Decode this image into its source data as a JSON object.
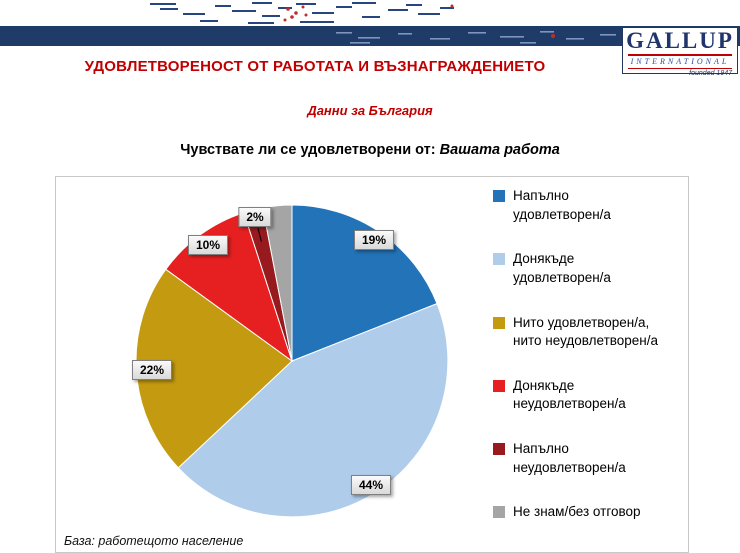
{
  "banner": {
    "logo": {
      "name": "GALLUP",
      "subname": "INTERNATIONAL",
      "tagline": "founded 1947"
    }
  },
  "header": {
    "title": "УДОВЛЕТВОРЕНОСТ ОТ РАБОТАТА И ВЪЗНАГРАЖДЕНИЕТО",
    "subtitle": "Данни за България"
  },
  "question": {
    "prefix": "Чувствате ли се удовлетворени от: ",
    "emphasis": "Вашата работа"
  },
  "footnote": "База: работещото население",
  "colors": {
    "accent_red": "#C00000",
    "banner_navy": "#1F3B67"
  },
  "chart_data": {
    "type": "pie",
    "title": "Чувствате ли се удовлетворени от: Вашата работа",
    "start_angle_deg": 0,
    "direction": "clockwise",
    "legend_position": "right",
    "unit": "%",
    "slices": [
      {
        "label": "Напълно удовлетворен/а",
        "value": 19,
        "data_label": "19%",
        "color": "#2373B8"
      },
      {
        "label": "Донякъде удовлетворен/а",
        "value": 44,
        "data_label": "44%",
        "color": "#AFCDEB"
      },
      {
        "label": "Нито удовлетворен/а, нито неудовлетворен/а",
        "value": 22,
        "data_label": "22%",
        "color": "#C49B10"
      },
      {
        "label": "Донякъде неудовлетворен/а",
        "value": 10,
        "data_label": "10%",
        "color": "#E62020"
      },
      {
        "label": "Напълно неудовлетворен/а",
        "value": 2,
        "data_label": "2%",
        "color": "#971B1E"
      },
      {
        "label": "Не знам/без отговор",
        "value": 3,
        "data_label": "",
        "color": "#A5A5A5"
      }
    ]
  }
}
